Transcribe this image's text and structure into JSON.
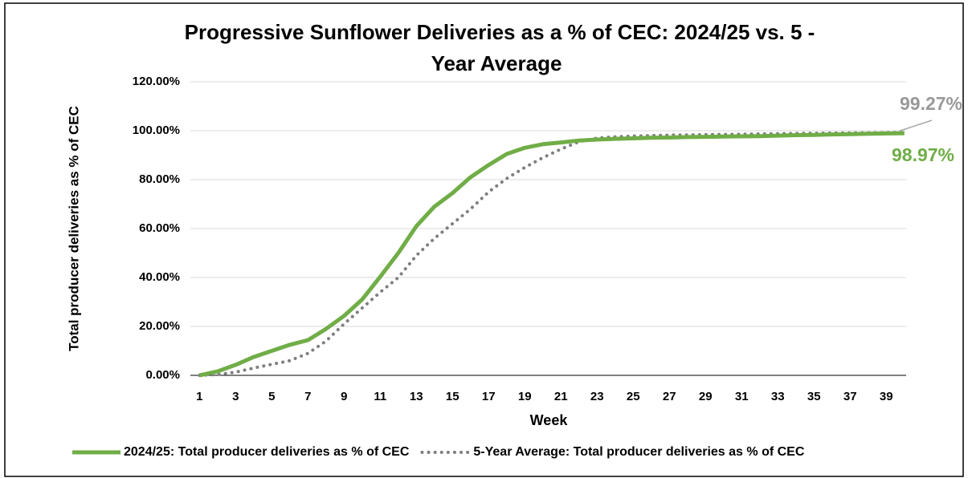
{
  "chart_data": {
    "type": "line",
    "title": [
      "Progressive Sunflower Deliveries as a % of CEC: 2024/25  vs. 5 -",
      "Year Average"
    ],
    "y_label": "Total producer deliveries as % of CEC",
    "x_label": "Week",
    "categories": [
      "1",
      null,
      "3",
      null,
      "5",
      null,
      "7",
      null,
      "9",
      null,
      "11",
      null,
      "13",
      null,
      "15",
      null,
      "17",
      null,
      "19",
      null,
      "21",
      null,
      "23",
      null,
      "25",
      null,
      "27",
      null,
      "29",
      null,
      "31",
      null,
      "33",
      null,
      "35",
      null,
      "37",
      null,
      "39",
      null
    ],
    "series": [
      {
        "name": "2024/25: Total producer deliveries as % of CEC",
        "color": "#70ad47",
        "style": "solid",
        "values": [
          0,
          1.6,
          4.3,
          7.5,
          10,
          12.5,
          14.4,
          19,
          24.3,
          31,
          40.3,
          50,
          61,
          69,
          74.5,
          81,
          86,
          90.5,
          93,
          94.5,
          95.2,
          96,
          96.4,
          96.7,
          96.9,
          97.1,
          97.2,
          97.4,
          97.5,
          97.6,
          97.7,
          97.8,
          98,
          98.2,
          98.3,
          98.5,
          98.6,
          98.8,
          98.9,
          98.97
        ]
      },
      {
        "name": "5-Year Average: Total producer deliveries as % of CEC",
        "color": "#7f7f7f",
        "style": "dotted",
        "values": [
          0,
          0.3,
          1.3,
          3,
          4.5,
          6,
          9,
          14,
          21,
          27.5,
          34,
          40,
          49,
          56,
          62,
          68,
          75,
          80.5,
          85,
          89,
          92.5,
          95.5,
          97,
          97.5,
          97.8,
          98,
          98.2,
          98.3,
          98.4,
          98.5,
          98.6,
          98.7,
          98.8,
          98.9,
          99,
          99.05,
          99.1,
          99.15,
          99.2,
          99.27
        ]
      }
    ],
    "annotations": [
      {
        "text": "99.27%",
        "color": "#999999"
      },
      {
        "text": "98.97%",
        "color": "#70ad47"
      }
    ],
    "ylim": [
      0,
      120
    ],
    "yticks": [
      {
        "value": 0,
        "label": "0.00%"
      },
      {
        "value": 20,
        "label": "20.00%"
      },
      {
        "value": 40,
        "label": "40.00%"
      },
      {
        "value": 60,
        "label": "60.00%"
      },
      {
        "value": 80,
        "label": "80.00%"
      },
      {
        "value": 100,
        "label": "100.00%"
      },
      {
        "value": 120,
        "label": "120.00%"
      }
    ],
    "grid": true,
    "legend": "bottom"
  }
}
